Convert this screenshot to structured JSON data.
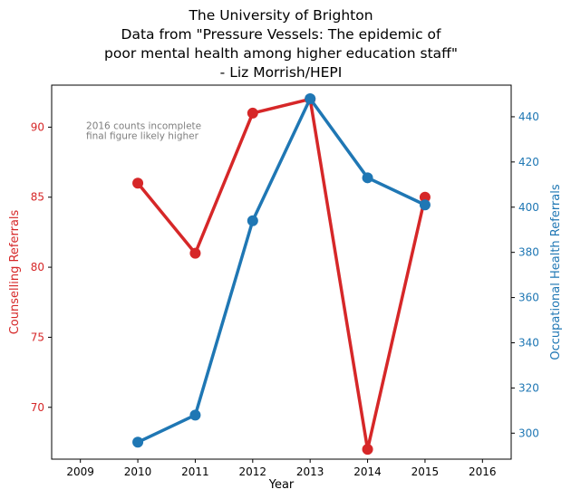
{
  "chart_data": {
    "type": "line",
    "title_lines": [
      "The University of Brighton",
      "Data from \"Pressure Vessels: The epidemic of",
      "poor mental health among higher education staff\"",
      "- Liz Morrish/HEPI"
    ],
    "xlabel": "Year",
    "ylabel_left": "Counselling Referrals",
    "ylabel_right": "Occupational Health Referrals",
    "x_ticks": [
      "2009",
      "2010",
      "2011",
      "2012",
      "2013",
      "2014",
      "2015",
      "2016"
    ],
    "x_range": [
      2008.5,
      2016.5
    ],
    "left_axis": {
      "range": [
        66.3,
        93
      ],
      "ticks": [
        "70",
        "75",
        "80",
        "85",
        "90"
      ],
      "color": "#d62728"
    },
    "right_axis": {
      "range": [
        288.5,
        454
      ],
      "ticks": [
        "300",
        "320",
        "340",
        "360",
        "380",
        "400",
        "420",
        "440"
      ],
      "color": "#1f77b4"
    },
    "series": [
      {
        "name": "Counselling Referrals",
        "axis": "left",
        "color": "#d62728",
        "x": [
          2010,
          2011,
          2012,
          2013,
          2014,
          2015
        ],
        "y": [
          86,
          81,
          91,
          92,
          67,
          85
        ]
      },
      {
        "name": "Occupational Health Referrals",
        "axis": "right",
        "color": "#1f77b4",
        "x": [
          2010,
          2011,
          2012,
          2013,
          2014,
          2015
        ],
        "y": [
          296,
          308,
          394,
          448,
          413,
          401
        ]
      }
    ],
    "annotation": [
      "2016 counts incomplete",
      "final figure likely higher"
    ],
    "grid": false
  }
}
